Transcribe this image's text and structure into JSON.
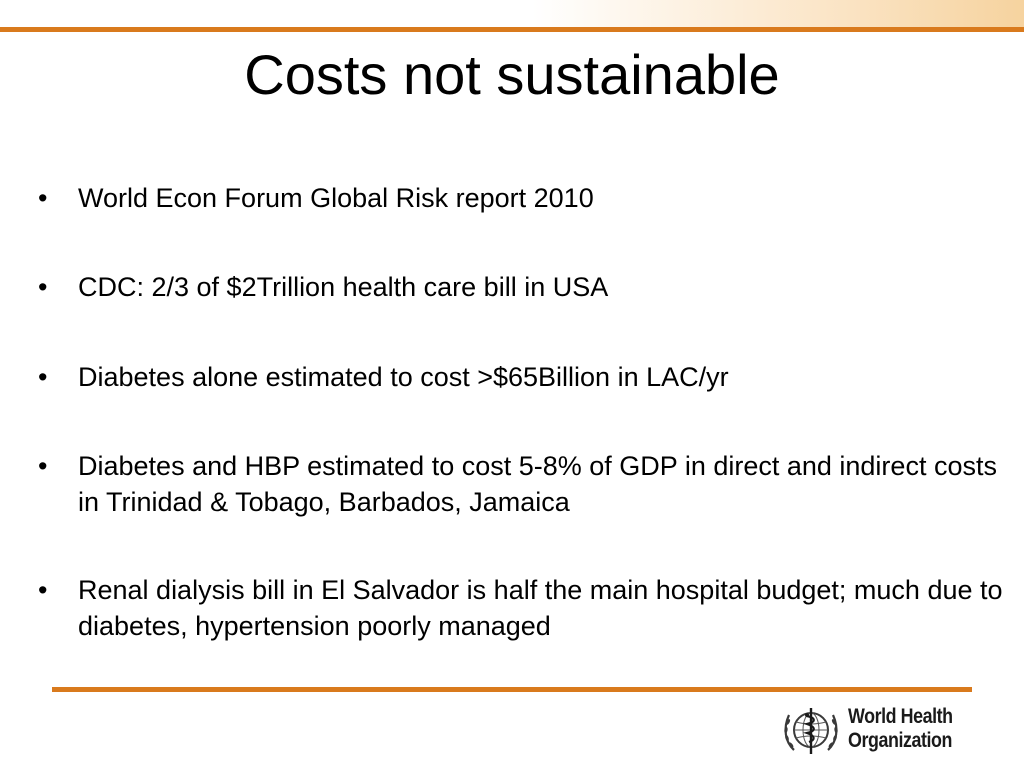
{
  "slide": {
    "title": "Costs not sustainable",
    "bullet_symbol": "•",
    "bullets": [
      "World Econ Forum Global Risk report 2010",
      "CDC: 2/3 of $2Trillion health care bill in USA",
      "Diabetes alone estimated to cost >$65Billion in LAC/yr",
      "Diabetes and HBP estimated to cost 5-8% of GDP in direct and indirect costs in Trinidad & Tobago, Barbados, Jamaica",
      "Renal dialysis bill in El Salvador is half the main hospital budget; much due to diabetes, hypertension poorly managed"
    ]
  },
  "logo": {
    "line1": "World Health",
    "line2": "Organization",
    "emblem_icon": "who-emblem-icon"
  },
  "colors": {
    "accent_rule": "#d97a1d",
    "text": "#000000"
  }
}
